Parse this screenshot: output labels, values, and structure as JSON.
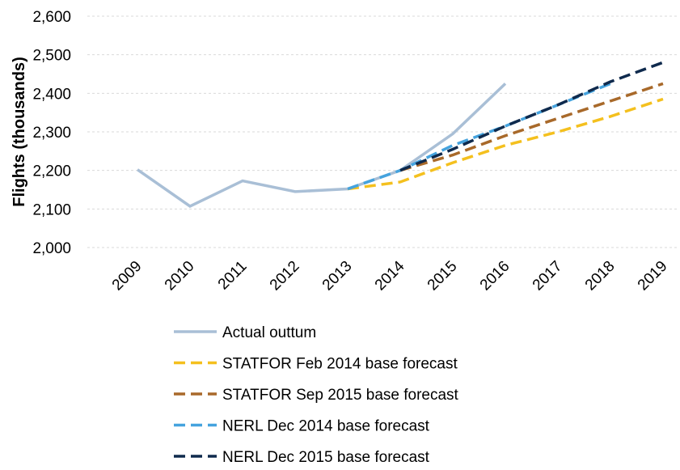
{
  "chart_data": {
    "type": "line",
    "y_label": "Flights (thousands)",
    "categories": [
      "2009",
      "2010",
      "2011",
      "2012",
      "2013",
      "2014",
      "2015",
      "2016",
      "2017",
      "2018",
      "2019"
    ],
    "ylim": [
      2000,
      2600
    ],
    "yticks": [
      {
        "value": 2000,
        "label": "2,000"
      },
      {
        "value": 2100,
        "label": "2,100"
      },
      {
        "value": 2200,
        "label": "2,200"
      },
      {
        "value": 2300,
        "label": "2,300"
      },
      {
        "value": 2400,
        "label": "2,400"
      },
      {
        "value": 2500,
        "label": "2,500"
      },
      {
        "value": 2600,
        "label": "2,600"
      }
    ],
    "grid": true,
    "series": [
      {
        "name": "Actual outtum",
        "color": "#a9bfd6",
        "dashed": false,
        "values": [
          2202,
          2107,
          2173,
          2145,
          2152,
          2200,
          2295,
          2425,
          null,
          null,
          null
        ]
      },
      {
        "name": "STATFOR Feb 2014 base forecast",
        "color": "#f4c01e",
        "dashed": true,
        "values": [
          null,
          null,
          null,
          null,
          2152,
          2170,
          2220,
          2265,
          2300,
          2340,
          2385
        ]
      },
      {
        "name": "STATFOR Sep 2015 base forecast",
        "color": "#a8692a",
        "dashed": true,
        "values": [
          null,
          null,
          null,
          null,
          null,
          2200,
          2240,
          2290,
          2335,
          2380,
          2425
        ]
      },
      {
        "name": "NERL Dec 2014 base forecast",
        "color": "#45a3de",
        "dashed": true,
        "values": [
          null,
          null,
          null,
          null,
          2152,
          2200,
          2265,
          2315,
          2370,
          2425,
          null
        ]
      },
      {
        "name": "NERL Dec 2015 base forecast",
        "color": "#0f2a4d",
        "dashed": true,
        "values": [
          null,
          null,
          null,
          null,
          null,
          2200,
          2255,
          2315,
          2370,
          2430,
          2480
        ]
      }
    ]
  }
}
